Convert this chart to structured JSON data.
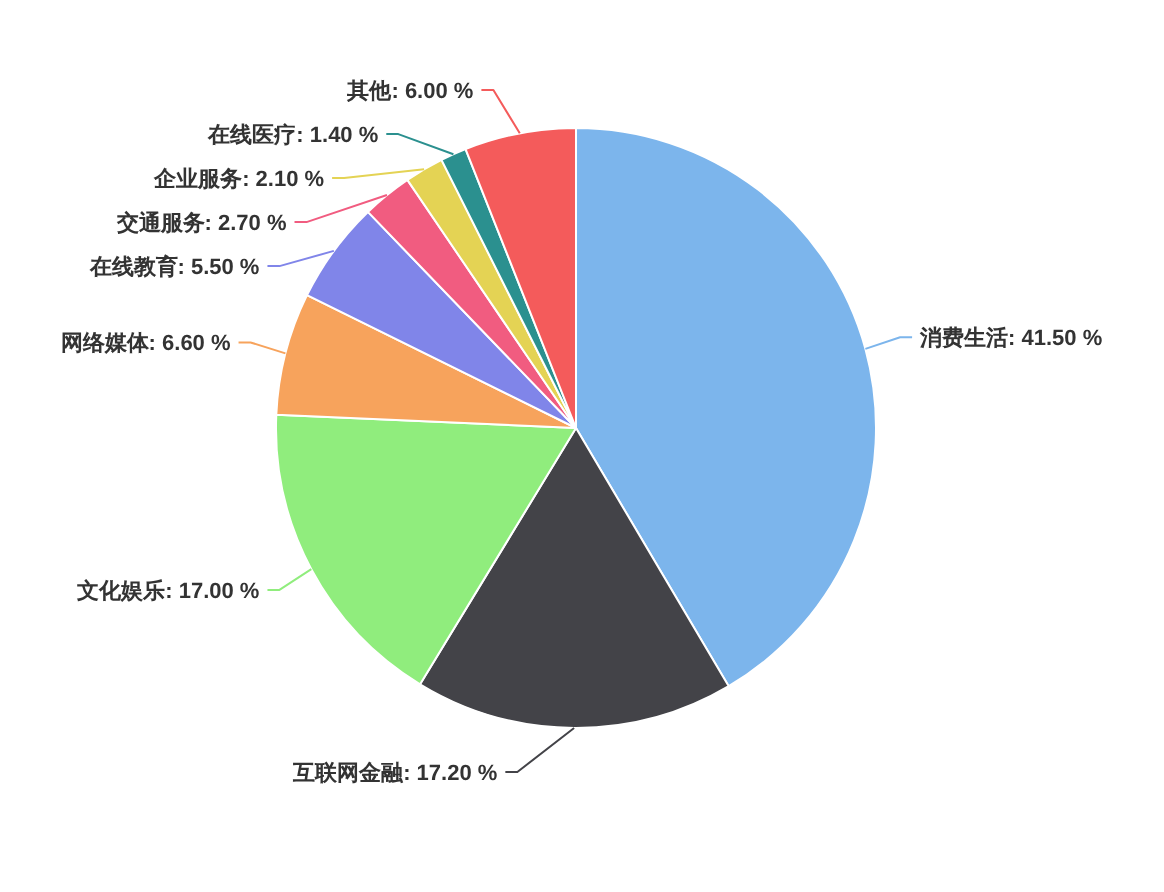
{
  "chart_data": {
    "type": "pie",
    "categories": [
      "消费生活",
      "互联网金融",
      "文化娱乐",
      "网络媒体",
      "在线教育",
      "交通服务",
      "企业服务",
      "在线医疗",
      "其他"
    ],
    "values": [
      41.5,
      17.2,
      17.0,
      6.6,
      5.5,
      2.7,
      2.1,
      1.4,
      6.0
    ],
    "value_labels": [
      "41.50 %",
      "17.20 %",
      "17.00 %",
      "6.60 %",
      "5.50 %",
      "2.70 %",
      "2.10 %",
      "1.40 %",
      "6.00 %"
    ],
    "colors": [
      "#7cb5ec",
      "#434348",
      "#90ed7d",
      "#f7a35c",
      "#8085e9",
      "#f15c80",
      "#e4d354",
      "#2b908f",
      "#f45b5b"
    ],
    "legend": false
  }
}
